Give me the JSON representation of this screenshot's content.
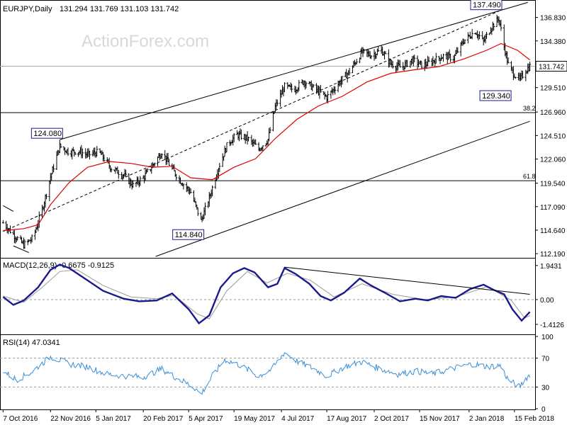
{
  "header": {
    "symbol": "EURJPY,Daily",
    "ohlc": "131.294 131.769 131.103 131.742"
  },
  "watermark": "ActionForex.com",
  "colors": {
    "price": "#000000",
    "ma": "#e00000",
    "channel": "#000000",
    "macd_line": "#1a1a8c",
    "macd_signal": "#9a9a9a",
    "rsi": "#3a8fd8",
    "grid_dash": "#9a9a9a",
    "label_border": "#1a1a8c"
  },
  "chart_data": [
    {
      "type": "candlestick",
      "title": "EURJPY,Daily",
      "y_axis_ticks": [
        "136.830",
        "134.380",
        "131.742",
        "129.510",
        "126.960",
        "124.510",
        "122.060",
        "119.540",
        "117.090",
        "114.640",
        "112.190"
      ],
      "y_range": [
        111.9,
        138.5
      ],
      "current_price_label": "131.742",
      "current_price": 131.742,
      "levels": [
        {
          "name": "38.2",
          "value": 126.9
        },
        {
          "name": "61.8",
          "value": 119.8
        }
      ],
      "annotations": [
        {
          "text": "137.490",
          "value": 137.49,
          "date": "2018-01-31"
        },
        {
          "text": "124.080",
          "value": 124.08,
          "date": "2016-12-01"
        },
        {
          "text": "114.840",
          "value": 114.84,
          "date": "2017-04-17"
        },
        {
          "text": "129.340",
          "value": 129.34,
          "date": "2018-02-09"
        }
      ],
      "moving_average": [
        [
          "2016-10-07",
          114.6
        ],
        [
          "2016-10-27",
          114.8
        ],
        [
          "2016-11-10",
          115.2
        ],
        [
          "2016-11-22",
          117.3
        ],
        [
          "2016-12-10",
          119.6
        ],
        [
          "2016-12-28",
          121.2
        ],
        [
          "2017-01-18",
          121.8
        ],
        [
          "2017-02-08",
          121.6
        ],
        [
          "2017-03-01",
          121.2
        ],
        [
          "2017-03-20",
          121.3
        ],
        [
          "2017-04-07",
          120.1
        ],
        [
          "2017-04-28",
          119.9
        ],
        [
          "2017-05-19",
          121.2
        ],
        [
          "2017-06-09",
          122.1
        ],
        [
          "2017-06-28",
          124.2
        ],
        [
          "2017-07-19",
          126.2
        ],
        [
          "2017-08-09",
          127.6
        ],
        [
          "2017-09-01",
          128.6
        ],
        [
          "2017-09-25",
          130.1
        ],
        [
          "2017-10-18",
          131.0
        ],
        [
          "2017-11-12",
          131.4
        ],
        [
          "2017-12-04",
          131.7
        ],
        [
          "2017-12-28",
          132.5
        ],
        [
          "2018-01-19",
          133.4
        ],
        [
          "2018-02-02",
          134.1
        ],
        [
          "2018-02-18",
          133.4
        ],
        [
          "2018-03-02",
          132.4
        ]
      ],
      "price_path": [
        [
          "2016-10-07",
          115.4
        ],
        [
          "2016-10-17",
          114.2
        ],
        [
          "2016-10-27",
          113.1
        ],
        [
          "2016-11-05",
          113.8
        ],
        [
          "2016-11-14",
          116.8
        ],
        [
          "2016-11-22",
          120.2
        ],
        [
          "2016-12-01",
          123.4
        ],
        [
          "2016-12-10",
          122.8
        ],
        [
          "2016-12-18",
          122.9
        ],
        [
          "2016-12-28",
          122.5
        ],
        [
          "2017-01-08",
          122.8
        ],
        [
          "2017-01-20",
          121.1
        ],
        [
          "2017-02-01",
          120.4
        ],
        [
          "2017-02-10",
          119.3
        ],
        [
          "2017-02-20",
          120.1
        ],
        [
          "2017-03-01",
          121.4
        ],
        [
          "2017-03-10",
          122.8
        ],
        [
          "2017-03-20",
          121.0
        ],
        [
          "2017-03-28",
          119.8
        ],
        [
          "2017-04-07",
          118.6
        ],
        [
          "2017-04-17",
          115.6
        ],
        [
          "2017-04-25",
          118.0
        ],
        [
          "2017-05-04",
          121.2
        ],
        [
          "2017-05-13",
          123.7
        ],
        [
          "2017-05-22",
          124.6
        ],
        [
          "2017-06-01",
          124.2
        ],
        [
          "2017-06-12",
          123.1
        ],
        [
          "2017-06-21",
          124.1
        ],
        [
          "2017-06-28",
          127.5
        ],
        [
          "2017-07-07",
          129.6
        ],
        [
          "2017-07-16",
          129.3
        ],
        [
          "2017-07-26",
          130.2
        ],
        [
          "2017-08-05",
          129.4
        ],
        [
          "2017-08-17",
          128.5
        ],
        [
          "2017-08-28",
          129.9
        ],
        [
          "2017-09-08",
          131.2
        ],
        [
          "2017-09-20",
          133.2
        ],
        [
          "2017-09-29",
          132.9
        ],
        [
          "2017-10-09",
          133.4
        ],
        [
          "2017-10-18",
          132.0
        ],
        [
          "2017-10-28",
          131.6
        ],
        [
          "2017-11-08",
          132.4
        ],
        [
          "2017-11-18",
          131.8
        ],
        [
          "2017-11-28",
          132.3
        ],
        [
          "2017-12-08",
          132.8
        ],
        [
          "2017-12-18",
          132.6
        ],
        [
          "2017-12-28",
          134.4
        ],
        [
          "2018-01-08",
          135.4
        ],
        [
          "2018-01-16",
          134.3
        ],
        [
          "2018-01-24",
          135.9
        ],
        [
          "2018-01-31",
          136.7
        ],
        [
          "2018-02-05",
          133.8
        ],
        [
          "2018-02-09",
          131.9
        ],
        [
          "2018-02-14",
          131.0
        ],
        [
          "2018-02-20",
          130.3
        ],
        [
          "2018-02-26",
          131.3
        ],
        [
          "2018-03-02",
          131.742
        ]
      ]
    },
    {
      "type": "line",
      "title": "MACD(12,26,9) -0.6675 -0.9125",
      "y_axis_ticks": [
        "1.9431",
        "0.00",
        "-1.4126"
      ],
      "y_range": [
        -1.9,
        2.3
      ],
      "macd": [
        [
          "2016-10-07",
          0.15
        ],
        [
          "2016-10-17",
          -0.3
        ],
        [
          "2016-10-27",
          -0.05
        ],
        [
          "2016-11-10",
          0.7
        ],
        [
          "2016-11-22",
          1.7
        ],
        [
          "2016-12-01",
          2.0
        ],
        [
          "2016-12-10",
          1.8
        ],
        [
          "2016-12-24",
          1.25
        ],
        [
          "2017-01-12",
          0.5
        ],
        [
          "2017-02-01",
          0.05
        ],
        [
          "2017-02-16",
          -0.1
        ],
        [
          "2017-03-05",
          -0.05
        ],
        [
          "2017-03-20",
          0.35
        ],
        [
          "2017-04-05",
          -0.55
        ],
        [
          "2017-04-15",
          -1.35
        ],
        [
          "2017-04-25",
          -0.9
        ],
        [
          "2017-05-06",
          0.7
        ],
        [
          "2017-05-18",
          1.5
        ],
        [
          "2017-05-29",
          1.8
        ],
        [
          "2017-06-08",
          1.55
        ],
        [
          "2017-06-21",
          0.7
        ],
        [
          "2017-06-30",
          0.9
        ],
        [
          "2017-07-07",
          1.8
        ],
        [
          "2017-07-18",
          1.45
        ],
        [
          "2017-07-31",
          0.9
        ],
        [
          "2017-08-11",
          0.2
        ],
        [
          "2017-08-21",
          -0.05
        ],
        [
          "2017-09-03",
          0.4
        ],
        [
          "2017-09-18",
          1.2
        ],
        [
          "2017-09-29",
          0.8
        ],
        [
          "2017-10-12",
          0.4
        ],
        [
          "2017-10-27",
          -0.1
        ],
        [
          "2017-11-11",
          0.05
        ],
        [
          "2017-11-23",
          -0.05
        ],
        [
          "2017-12-06",
          0.2
        ],
        [
          "2017-12-20",
          0.1
        ],
        [
          "2018-01-03",
          0.6
        ],
        [
          "2018-01-16",
          0.85
        ],
        [
          "2018-01-26",
          0.55
        ],
        [
          "2018-02-05",
          0.3
        ],
        [
          "2018-02-13",
          -0.55
        ],
        [
          "2018-02-22",
          -1.2
        ],
        [
          "2018-03-02",
          -0.7
        ]
      ],
      "signal": [
        [
          "2016-10-07",
          0.2
        ],
        [
          "2016-10-27",
          -0.15
        ],
        [
          "2016-11-14",
          0.7
        ],
        [
          "2016-12-01",
          1.6
        ],
        [
          "2016-12-18",
          1.7
        ],
        [
          "2017-01-12",
          0.8
        ],
        [
          "2017-02-08",
          0.15
        ],
        [
          "2017-03-05",
          0.05
        ],
        [
          "2017-03-22",
          0.25
        ],
        [
          "2017-04-13",
          -0.8
        ],
        [
          "2017-04-25",
          -1.1
        ],
        [
          "2017-05-12",
          0.5
        ],
        [
          "2017-06-01",
          1.6
        ],
        [
          "2017-06-20",
          0.95
        ],
        [
          "2017-07-10",
          1.5
        ],
        [
          "2017-08-01",
          1.1
        ],
        [
          "2017-08-24",
          0.15
        ],
        [
          "2017-09-20",
          0.9
        ],
        [
          "2017-10-20",
          0.3
        ],
        [
          "2017-11-20",
          0.0
        ],
        [
          "2017-12-20",
          0.15
        ],
        [
          "2018-01-20",
          0.75
        ],
        [
          "2018-02-12",
          -0.05
        ],
        [
          "2018-02-25",
          -1.05
        ],
        [
          "2018-03-02",
          -0.9125
        ]
      ],
      "trendline_start": [
        "2017-07-07",
        1.85
      ],
      "trendline_end": [
        "2018-03-02",
        0.3
      ]
    },
    {
      "type": "line",
      "title": "RSI(14) 47.0341",
      "y_axis_ticks": [
        "100",
        "70",
        "30",
        "0"
      ],
      "y_range": [
        0,
        100
      ],
      "levels": [
        70,
        30
      ],
      "rsi": [
        [
          "2016-10-07",
          52
        ],
        [
          "2016-10-20",
          40
        ],
        [
          "2016-11-03",
          50
        ],
        [
          "2016-11-22",
          72
        ],
        [
          "2016-12-10",
          62
        ],
        [
          "2016-12-28",
          58
        ],
        [
          "2017-01-15",
          48
        ],
        [
          "2017-02-05",
          45
        ],
        [
          "2017-02-20",
          44
        ],
        [
          "2017-03-10",
          55
        ],
        [
          "2017-03-25",
          42
        ],
        [
          "2017-04-10",
          30
        ],
        [
          "2017-04-17",
          20
        ],
        [
          "2017-04-28",
          45
        ],
        [
          "2017-05-10",
          68
        ],
        [
          "2017-05-25",
          60
        ],
        [
          "2017-06-12",
          45
        ],
        [
          "2017-06-25",
          55
        ],
        [
          "2017-07-07",
          78
        ],
        [
          "2017-07-20",
          65
        ],
        [
          "2017-08-05",
          55
        ],
        [
          "2017-08-17",
          45
        ],
        [
          "2017-09-03",
          58
        ],
        [
          "2017-09-20",
          65
        ],
        [
          "2017-10-08",
          55
        ],
        [
          "2017-10-25",
          48
        ],
        [
          "2017-11-12",
          52
        ],
        [
          "2017-11-28",
          48
        ],
        [
          "2017-12-15",
          55
        ],
        [
          "2018-01-05",
          62
        ],
        [
          "2018-01-20",
          58
        ],
        [
          "2018-02-01",
          60
        ],
        [
          "2018-02-09",
          40
        ],
        [
          "2018-02-20",
          30
        ],
        [
          "2018-02-26",
          42
        ],
        [
          "2018-03-02",
          47.0341
        ]
      ]
    }
  ],
  "x_axis": {
    "range": [
      "2016-10-04",
      "2018-03-05"
    ],
    "labels": [
      {
        "text": "7 Oct 2016",
        "date": "2016-10-07"
      },
      {
        "text": "22 Nov 2016",
        "date": "2016-11-22"
      },
      {
        "text": "5 Jan 2017",
        "date": "2017-01-05"
      },
      {
        "text": "20 Feb 2017",
        "date": "2017-02-20"
      },
      {
        "text": "5 Apr 2017",
        "date": "2017-04-05"
      },
      {
        "text": "19 May 2017",
        "date": "2017-05-19"
      },
      {
        "text": "4 Jul 2017",
        "date": "2017-07-04"
      },
      {
        "text": "17 Aug 2017",
        "date": "2017-08-17"
      },
      {
        "text": "2 Oct 2017",
        "date": "2017-10-02"
      },
      {
        "text": "15 Nov 2017",
        "date": "2017-11-15"
      },
      {
        "text": "2 Jan 2018",
        "date": "2018-01-02"
      },
      {
        "text": "15 Feb 2018",
        "date": "2018-02-15"
      }
    ]
  }
}
